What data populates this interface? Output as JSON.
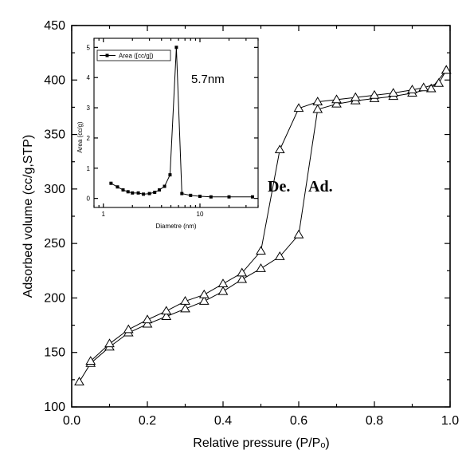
{
  "chart_data": [
    {
      "type": "line",
      "xlabel": "Relative pressure (P/Pₒ)",
      "ylabel": "Adsorbed volume (cc/g,STP)",
      "xlim": [
        0.0,
        1.0
      ],
      "ylim": [
        100,
        450
      ],
      "xticks": [
        0.0,
        0.2,
        0.4,
        0.6,
        0.8,
        1.0
      ],
      "xtick_labels": [
        "0.0",
        "0.2",
        "0.4",
        "0.6",
        "0.8",
        "1.0"
      ],
      "yticks": [
        100,
        150,
        200,
        250,
        300,
        350,
        400,
        450
      ],
      "ytick_labels": [
        "100",
        "150",
        "200",
        "250",
        "300",
        "350",
        "400",
        "450"
      ],
      "annotations": [
        "De.",
        "Ad."
      ],
      "series": [
        {
          "marker": "open-triangle",
          "x": [
            0.02,
            0.05,
            0.1,
            0.15,
            0.2,
            0.25,
            0.3,
            0.35,
            0.4,
            0.45,
            0.5,
            0.55,
            0.6,
            0.65,
            0.7,
            0.75,
            0.8,
            0.85,
            0.9,
            0.95,
            0.99
          ],
          "y": [
            123,
            140,
            155,
            168,
            176,
            183,
            190,
            197,
            206,
            217,
            227,
            238,
            258,
            373,
            378,
            381,
            383,
            385,
            388,
            392,
            409
          ]
        },
        {
          "marker": "open-triangle",
          "x": [
            0.99,
            0.97,
            0.93,
            0.9,
            0.85,
            0.8,
            0.75,
            0.7,
            0.65,
            0.6,
            0.55,
            0.5,
            0.45,
            0.4,
            0.35,
            0.3,
            0.25,
            0.2,
            0.15,
            0.1,
            0.05
          ],
          "y": [
            409,
            397,
            393,
            391,
            388,
            386,
            384,
            382,
            380,
            374,
            336,
            243,
            223,
            213,
            203,
            197,
            188,
            180,
            171,
            158,
            142
          ]
        }
      ]
    },
    {
      "type": "line",
      "xlabel": "Diametre (nm)",
      "ylabel": "Area (cc/g)",
      "x_scale": "log",
      "xlim": [
        0.8,
        40
      ],
      "ylim": [
        -0.3,
        5.3
      ],
      "xticks": [
        1,
        10
      ],
      "xtick_labels": [
        "1",
        "10"
      ],
      "yticks": [
        0,
        1,
        2,
        3,
        4,
        5
      ],
      "ytick_labels": [
        "0",
        "1",
        "2",
        "3",
        "4",
        "5"
      ],
      "legend": "top-left",
      "annotations": [
        "5.7nm"
      ],
      "series": [
        {
          "name": "Area ([cc/g])",
          "marker": "filled-square",
          "x": [
            1.2,
            1.4,
            1.6,
            1.8,
            2.0,
            2.3,
            2.6,
            3.0,
            3.4,
            3.8,
            4.3,
            4.9,
            5.7,
            6.5,
            8.0,
            10.0,
            13.0,
            20.0,
            35.0
          ],
          "y": [
            0.5,
            0.38,
            0.28,
            0.22,
            0.18,
            0.18,
            0.14,
            0.16,
            0.2,
            0.28,
            0.4,
            0.78,
            5.0,
            0.16,
            0.1,
            0.07,
            0.05,
            0.05,
            0.05
          ]
        }
      ]
    }
  ]
}
